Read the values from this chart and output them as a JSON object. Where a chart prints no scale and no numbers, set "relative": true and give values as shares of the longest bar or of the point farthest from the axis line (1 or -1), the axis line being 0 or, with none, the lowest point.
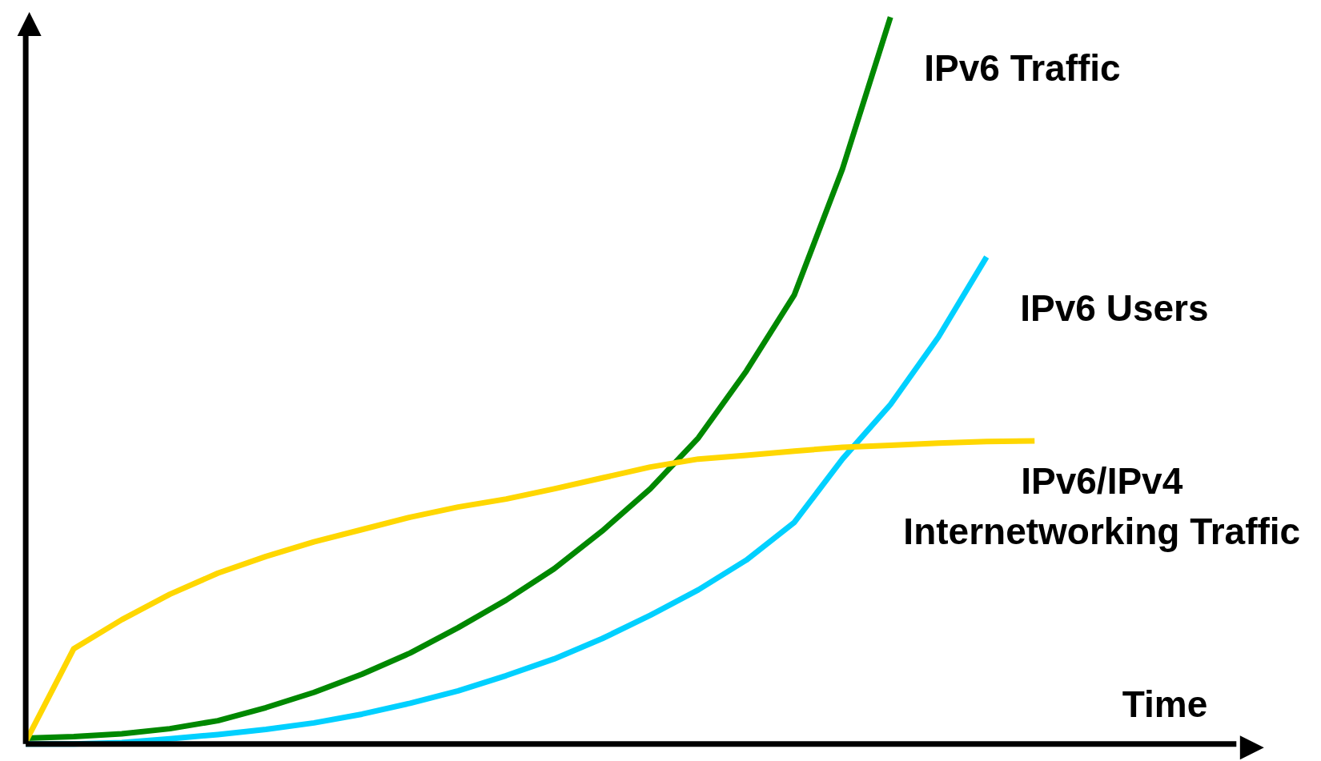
{
  "chart_data": {
    "type": "line",
    "relative": true,
    "xlabel": "Time",
    "categories": [
      null,
      null,
      null,
      null,
      null,
      null,
      null,
      null,
      null,
      null,
      null,
      null,
      null,
      null,
      null,
      null,
      null,
      null,
      null,
      null,
      null,
      null
    ],
    "series": [
      {
        "name": "IPv6 Traffic",
        "color": "#008800",
        "values": [
          0.008,
          0.01,
          0.014,
          0.021,
          0.032,
          0.05,
          0.071,
          0.096,
          0.125,
          0.16,
          0.198,
          0.241,
          0.293,
          0.351,
          0.421,
          0.513,
          0.618,
          0.791,
          1.0,
          null,
          null,
          null
        ]
      },
      {
        "name": "IPv6 Users",
        "color": "#00d0ff",
        "values": [
          0,
          0,
          0.002,
          0.007,
          0.013,
          0.02,
          0.029,
          0.041,
          0.056,
          0.073,
          0.094,
          0.117,
          0.145,
          0.177,
          0.212,
          0.253,
          0.305,
          0.392,
          0.467,
          0.56,
          0.67,
          null
        ]
      },
      {
        "name": "IPv6/IPv4 Internetworking Traffic",
        "color": "#ffd700",
        "values": [
          0.003,
          0.131,
          0.171,
          0.206,
          0.235,
          0.258,
          0.278,
          0.295,
          0.312,
          0.326,
          0.337,
          0.351,
          0.366,
          0.381,
          0.392,
          0.397,
          0.403,
          0.408,
          0.411,
          0.414,
          0.416,
          0.417
        ]
      }
    ]
  }
}
